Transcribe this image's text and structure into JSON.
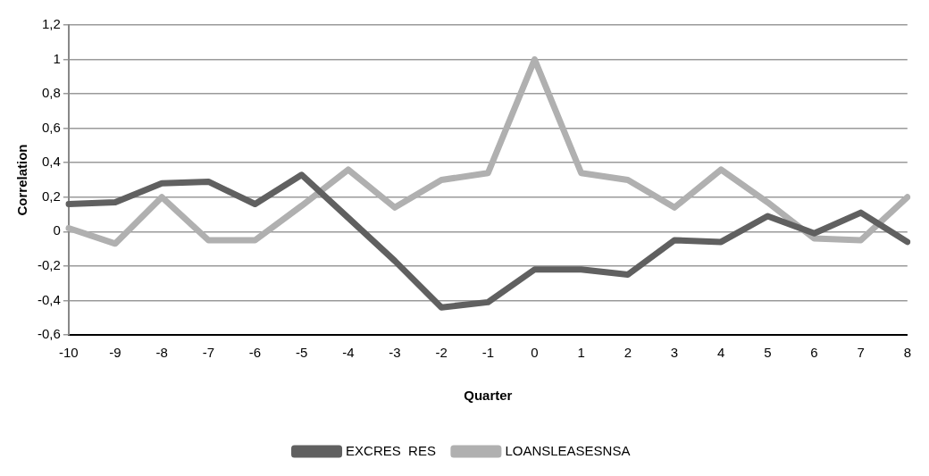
{
  "chart_data": {
    "type": "line",
    "xlabel": "Quarter",
    "ylabel": "Correlation",
    "categories": [
      "-10",
      "-9",
      "-8",
      "-7",
      "-6",
      "-5",
      "-4",
      "-3",
      "-2",
      "-1",
      "0",
      "1",
      "2",
      "3",
      "4",
      "5",
      "6",
      "7",
      "8"
    ],
    "series": [
      {
        "name": "EXCRES  RES",
        "color": "#606060",
        "values": [
          0.16,
          0.17,
          0.28,
          0.29,
          0.16,
          0.33,
          0.08,
          -0.17,
          -0.44,
          -0.41,
          -0.22,
          -0.22,
          -0.25,
          -0.05,
          -0.06,
          0.09,
          -0.01,
          0.11,
          -0.06
        ]
      },
      {
        "name": "LOANSLEASESNSA",
        "color": "#b0b0b0",
        "values": [
          0.02,
          -0.07,
          0.2,
          -0.05,
          -0.05,
          0.15,
          0.36,
          0.14,
          0.3,
          0.34,
          1,
          0.34,
          0.3,
          0.14,
          0.36,
          0.17,
          -0.04,
          -0.05,
          0.2
        ]
      }
    ],
    "ylim": [
      -0.6,
      1.2
    ],
    "yticks": [
      {
        "value": -0.6,
        "label": "-0,6"
      },
      {
        "value": -0.4,
        "label": "-0,4"
      },
      {
        "value": -0.2,
        "label": "-0,2"
      },
      0,
      {
        "value": 0.2,
        "label": "0,2"
      },
      {
        "value": 0.4,
        "label": "0,4"
      },
      {
        "value": 0.6,
        "label": "0,6"
      },
      {
        "value": 0.8,
        "label": "0,8"
      },
      1,
      {
        "value": 1.2,
        "label": "1,2"
      }
    ],
    "grid": "y",
    "legend": "bottom",
    "marker": "none",
    "line_style": "solid"
  }
}
